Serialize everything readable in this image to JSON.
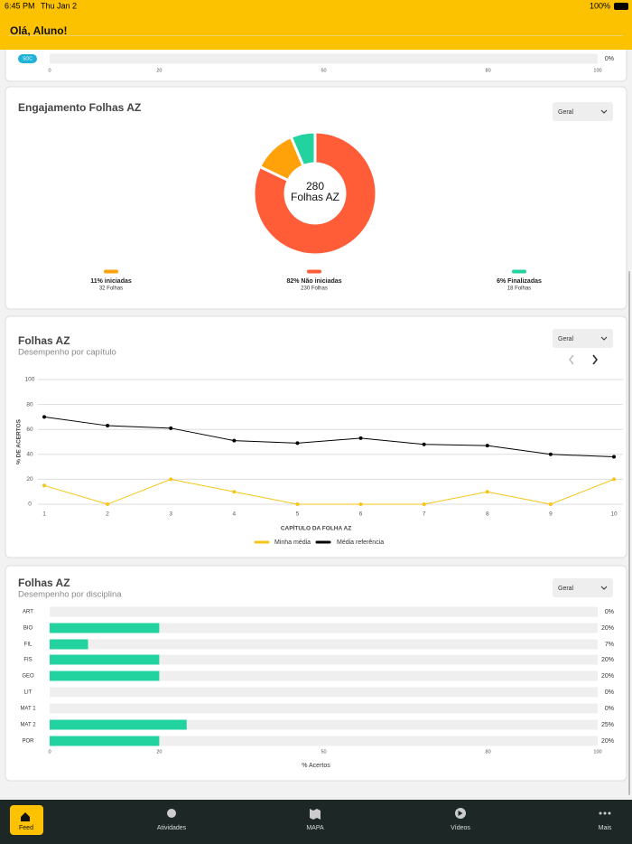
{
  "status_bar": {
    "time": "6:45 PM",
    "date": "Thu Jan 2",
    "battery": "100%"
  },
  "header": {
    "title": "Olá, Aluno!"
  },
  "chart_data": [
    {
      "type": "hbar",
      "categories": [
        "SOC"
      ],
      "values": [
        0
      ],
      "value_labels": [
        "0%"
      ],
      "color": "#22d3a0",
      "xlim": [
        0,
        100
      ],
      "xticks": [
        0,
        20,
        50,
        80,
        100
      ]
    },
    {
      "type": "donut",
      "title": "Engajamento Folhas AZ",
      "dropdown": "Geral",
      "center_value": 280,
      "center_label": "Folhas AZ",
      "categories": [
        "11% iniciadas",
        "82% Não iniciadas",
        "6% Finalizadas"
      ],
      "values": [
        32,
        230,
        18
      ],
      "value_labels": [
        "32 Folhas",
        "230 Folhas",
        "18 Folhas"
      ],
      "colors": [
        "#ffa20a",
        "#ff5c38",
        "#22d3a0"
      ]
    },
    {
      "type": "line",
      "title": "Folhas AZ",
      "subtitle": "Desempenho por capítulo",
      "dropdown": "Geral",
      "y_label": "% DE ACERTOS",
      "x_label": "CAPÍTULO DA FOLHA AZ",
      "x": [
        1,
        2,
        3,
        4,
        5,
        6,
        7,
        8,
        9,
        10
      ],
      "xlim": [
        1,
        10
      ],
      "ylim": [
        0,
        100
      ],
      "yticks": [
        0,
        20,
        40,
        60,
        80,
        100
      ],
      "grid": true,
      "series": [
        {
          "name": "Minha média",
          "color": "#f5c518",
          "values": [
            15,
            0,
            20,
            10,
            0,
            0,
            0,
            10,
            0,
            20
          ]
        },
        {
          "name": "Média referência",
          "color": "#000000",
          "values": [
            70,
            63,
            61,
            51,
            49,
            53,
            48,
            47,
            40,
            38
          ]
        }
      ]
    },
    {
      "type": "hbar",
      "title": "Folhas AZ",
      "subtitle": "Desempenho por disciplina",
      "dropdown": "Geral",
      "x_label": "% Acertos",
      "categories": [
        "ART",
        "BIO",
        "FIL",
        "FIS",
        "GEO",
        "LIT",
        "MAT 1",
        "MAT 2",
        "POR"
      ],
      "values": [
        0,
        20,
        7,
        20,
        20,
        0,
        0,
        25,
        20
      ],
      "value_labels": [
        "0%",
        "20%",
        "7%",
        "20%",
        "20%",
        "0%",
        "0%",
        "25%",
        "20%"
      ],
      "color": "#22d3a0",
      "xlim": [
        0,
        100
      ],
      "xticks": [
        0,
        20,
        50,
        80,
        100
      ]
    }
  ],
  "nav": {
    "items": [
      "Feed",
      "Atividades",
      "MAPA",
      "Vídeos",
      "Mais"
    ]
  }
}
